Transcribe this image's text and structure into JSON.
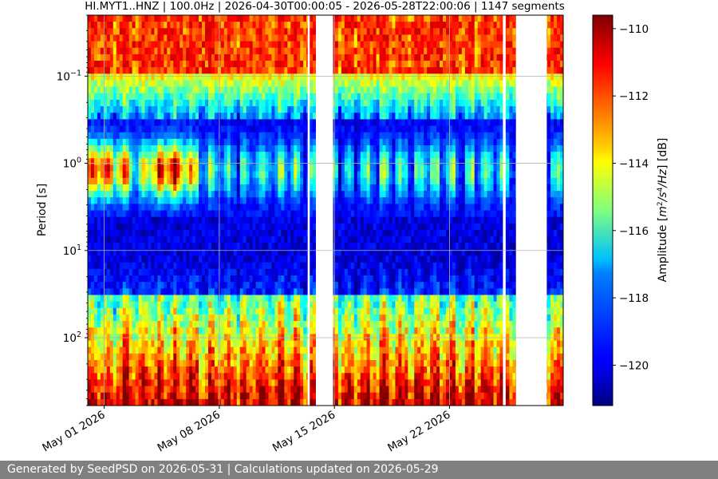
{
  "chart_data": {
    "type": "heatmap",
    "title": "HI.MYT1..HNZ | 100.0Hz | 2026-04-30T00:00:05 - 2026-05-28T22:00:06 | 1147 segments",
    "xlabel": "",
    "ylabel": "Period [s]",
    "x_range": [
      "2026-04-30T00:00:05",
      "2026-05-28T22:00:06"
    ],
    "x_ticks": [
      {
        "date": "2026-05-01",
        "label": "May 01 2026"
      },
      {
        "date": "2026-05-08",
        "label": "May 08 2026"
      },
      {
        "date": "2026-05-15",
        "label": "May 15 2026"
      },
      {
        "date": "2026-05-22",
        "label": "May 22 2026"
      }
    ],
    "y_scale": "log",
    "y_inverted": true,
    "y_range": [
      0.02,
      600
    ],
    "y_ticks": [
      {
        "value": 0.1,
        "base": "10",
        "exp": "−1"
      },
      {
        "value": 1,
        "base": "10",
        "exp": "0"
      },
      {
        "value": 10,
        "base": "10",
        "exp": "1"
      },
      {
        "value": 100,
        "base": "10",
        "exp": "2"
      }
    ],
    "grid": true,
    "data_gaps": [
      {
        "start": "2026-05-13T09:00:00",
        "end": "2026-05-13T12:00:00"
      },
      {
        "start": "2026-05-13T21:00:00",
        "end": "2026-05-14T22:00:00"
      },
      {
        "start": "2026-05-25T06:00:00",
        "end": "2026-05-25T10:00:00"
      },
      {
        "start": "2026-05-26T01:00:00",
        "end": "2026-05-27T22:00:00"
      }
    ],
    "colormap": "jet",
    "colorbar": {
      "label_prefix": "Amplitude [",
      "label_m": "m",
      "label_m_exp": "2",
      "label_s": "/s",
      "label_s_exp": "4",
      "label_hz": "/Hz",
      "label_suffix": "] [dB]",
      "range": [
        -121.2,
        -109.6
      ],
      "ticks": [
        {
          "value": -110,
          "label": "−110"
        },
        {
          "value": -112,
          "label": "−112"
        },
        {
          "value": -114,
          "label": "−114"
        },
        {
          "value": -116,
          "label": "−116"
        },
        {
          "value": -118,
          "label": "−118"
        },
        {
          "value": -120,
          "label": "−120"
        }
      ]
    },
    "amplitude_features": {
      "short_period_band": {
        "period_range": [
          0.02,
          0.1
        ],
        "level_db": -110
      },
      "microseism_peak": {
        "period": 1.2,
        "level_db_range": [
          -114,
          -110
        ],
        "strongest_dates": [
          "2026-05-01",
          "2026-05-05"
        ]
      },
      "quiet_band": {
        "period_range": [
          3,
          20
        ],
        "level_db": -121
      },
      "long_period_band": {
        "period_range": [
          80,
          600
        ],
        "level_db_range": [
          -117,
          -110
        ]
      }
    }
  },
  "footer": {
    "text": "Generated by SeedPSD on 2026-05-31 | Calculations updated on 2026-05-29"
  }
}
